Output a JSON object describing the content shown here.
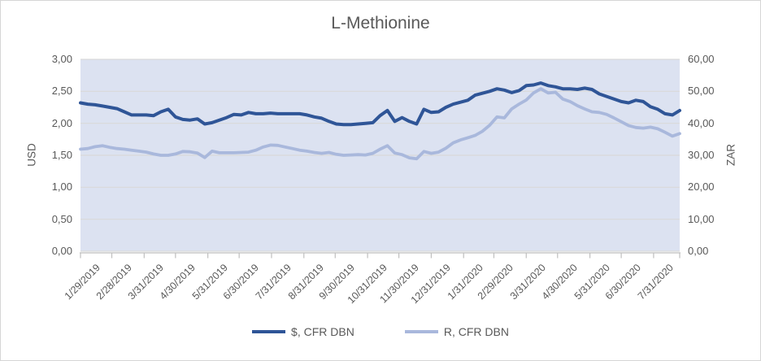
{
  "chart_data": {
    "type": "line",
    "title": "L-Methionine",
    "grid": true,
    "legend_position": "bottom",
    "plot_bg": "#dce2f1",
    "gridline_color": "#d9d9d9",
    "axis_color": "#bfbfbf",
    "text_color": "#595959",
    "left_axis": {
      "label": "USD",
      "min": 0,
      "max": 3,
      "tick_labels": [
        "3,00",
        "2,50",
        "2,00",
        "1,50",
        "1,00",
        "0,50",
        "0,00"
      ]
    },
    "right_axis": {
      "label": "ZAR",
      "min": 0,
      "max": 60,
      "tick_labels": [
        "60,00",
        "50,00",
        "40,00",
        "30,00",
        "20,00",
        "10,00",
        "0,00"
      ]
    },
    "x_labels": [
      "1/29/2019",
      "2/28/2019",
      "3/31/2019",
      "4/30/2019",
      "5/31/2019",
      "6/30/2019",
      "7/31/2019",
      "8/31/2019",
      "9/30/2019",
      "10/31/2019",
      "11/30/2019",
      "12/31/2019",
      "1/31/2020",
      "2/29/2020",
      "3/31/2020",
      "4/30/2020",
      "5/31/2020",
      "6/30/2020",
      "7/31/2020"
    ],
    "x_frequency": "weekly",
    "series": [
      {
        "name": "$, CFR DBN",
        "axis": "left",
        "color": "#2f5597",
        "stroke_width": 4,
        "values": [
          2.32,
          2.3,
          2.29,
          2.27,
          2.25,
          2.23,
          2.18,
          2.13,
          2.13,
          2.13,
          2.12,
          2.18,
          2.22,
          2.1,
          2.06,
          2.05,
          2.07,
          1.99,
          2.01,
          2.05,
          2.09,
          2.14,
          2.13,
          2.17,
          2.15,
          2.15,
          2.16,
          2.15,
          2.15,
          2.15,
          2.15,
          2.13,
          2.1,
          2.08,
          2.03,
          1.99,
          1.98,
          1.98,
          1.99,
          2.0,
          2.01,
          2.12,
          2.2,
          2.03,
          2.09,
          2.03,
          1.99,
          2.22,
          2.17,
          2.18,
          2.25,
          2.3,
          2.33,
          2.36,
          2.44,
          2.47,
          2.5,
          2.54,
          2.52,
          2.48,
          2.51,
          2.59,
          2.6,
          2.63,
          2.59,
          2.57,
          2.54,
          2.54,
          2.53,
          2.55,
          2.53,
          2.46,
          2.42,
          2.38,
          2.34,
          2.32,
          2.36,
          2.34,
          2.26,
          2.22,
          2.15,
          2.13,
          2.2
        ]
      },
      {
        "name": "R, CFR DBN",
        "axis": "right",
        "color": "#a9b8dc",
        "stroke_width": 3.8,
        "values": [
          31.9,
          32.1,
          32.7,
          33.0,
          32.5,
          32.1,
          31.9,
          31.6,
          31.3,
          31.0,
          30.4,
          30.0,
          30.0,
          30.4,
          31.2,
          31.1,
          30.7,
          29.3,
          31.3,
          30.8,
          30.8,
          30.8,
          30.9,
          31.0,
          31.6,
          32.6,
          33.2,
          33.1,
          32.6,
          32.1,
          31.6,
          31.3,
          30.9,
          30.6,
          30.9,
          30.3,
          30.0,
          30.1,
          30.2,
          30.1,
          30.6,
          31.9,
          33.0,
          30.7,
          30.2,
          29.2,
          28.9,
          31.2,
          30.6,
          31.0,
          32.2,
          33.9,
          34.8,
          35.5,
          36.2,
          37.5,
          39.4,
          42.0,
          41.7,
          44.5,
          46.0,
          47.3,
          49.5,
          50.8,
          49.5,
          49.7,
          47.6,
          46.8,
          45.5,
          44.5,
          43.6,
          43.4,
          42.8,
          41.7,
          40.5,
          39.3,
          38.7,
          38.5,
          38.8,
          38.3,
          37.2,
          36.0,
          36.8
        ]
      }
    ]
  }
}
